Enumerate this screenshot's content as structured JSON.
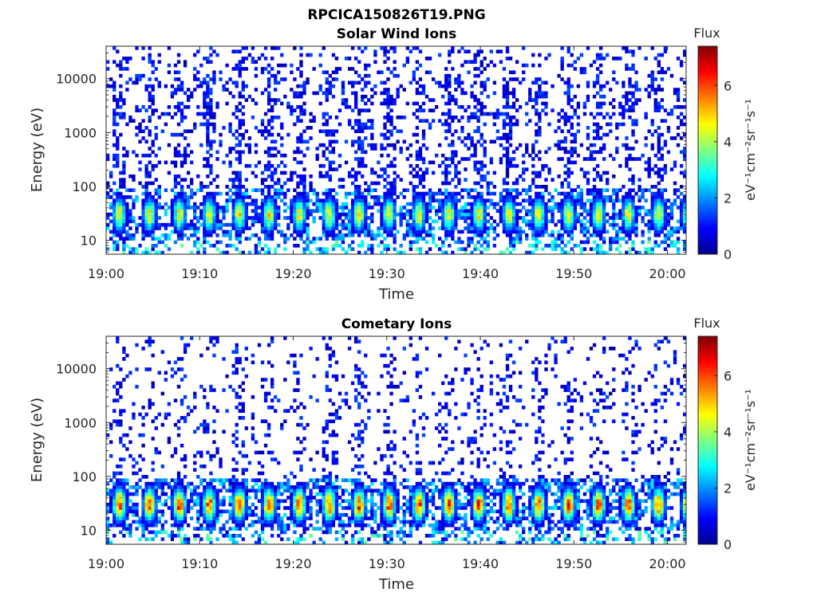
{
  "figure_title": "RPCICA150826T19.PNG",
  "chart_data": [
    {
      "type": "heatmap",
      "title": "Solar Wind Ions",
      "xlabel": "Time",
      "ylabel": "Energy (eV)",
      "yscale": "log",
      "ylim": [
        5.5,
        40000
      ],
      "xlim": [
        "19:00",
        "20:02"
      ],
      "x_ticks": [
        "19:00",
        "19:10",
        "19:20",
        "19:30",
        "19:40",
        "19:50",
        "20:00"
      ],
      "y_ticks": [
        "10",
        "100",
        "1000",
        "10000"
      ],
      "y_tick_values": [
        10,
        100,
        1000,
        10000
      ],
      "colorbar": {
        "title": "Flux",
        "label": "eV⁻¹cm⁻²sr⁻¹s⁻¹",
        "range": [
          0,
          7.4
        ],
        "ticks": [
          "0",
          "2",
          "4",
          "6"
        ],
        "tick_values": [
          0,
          2,
          4,
          6
        ]
      },
      "colormap": "jet",
      "band": {
        "energy_center": 30,
        "peak_flux": 4.8,
        "period_min": 3.2
      },
      "background_flux": 1.2
    },
    {
      "type": "heatmap",
      "title": "Cometary Ions",
      "xlabel": "Time",
      "ylabel": "Energy (eV)",
      "yscale": "log",
      "ylim": [
        5.5,
        40000
      ],
      "xlim": [
        "19:00",
        "20:02"
      ],
      "x_ticks": [
        "19:00",
        "19:10",
        "19:20",
        "19:30",
        "19:40",
        "19:50",
        "20:00"
      ],
      "y_ticks": [
        "10",
        "100",
        "1000",
        "10000"
      ],
      "y_tick_values": [
        10,
        100,
        1000,
        10000
      ],
      "colorbar": {
        "title": "Flux",
        "label": "eV⁻¹cm⁻²sr⁻¹s⁻¹",
        "range": [
          0,
          7.4
        ],
        "ticks": [
          "0",
          "2",
          "4",
          "6"
        ],
        "tick_values": [
          0,
          2,
          4,
          6
        ]
      },
      "colormap": "jet",
      "band": {
        "energy_center": 30,
        "peak_flux": 6.2,
        "period_min": 3.2
      },
      "background_flux": 0.6
    }
  ]
}
